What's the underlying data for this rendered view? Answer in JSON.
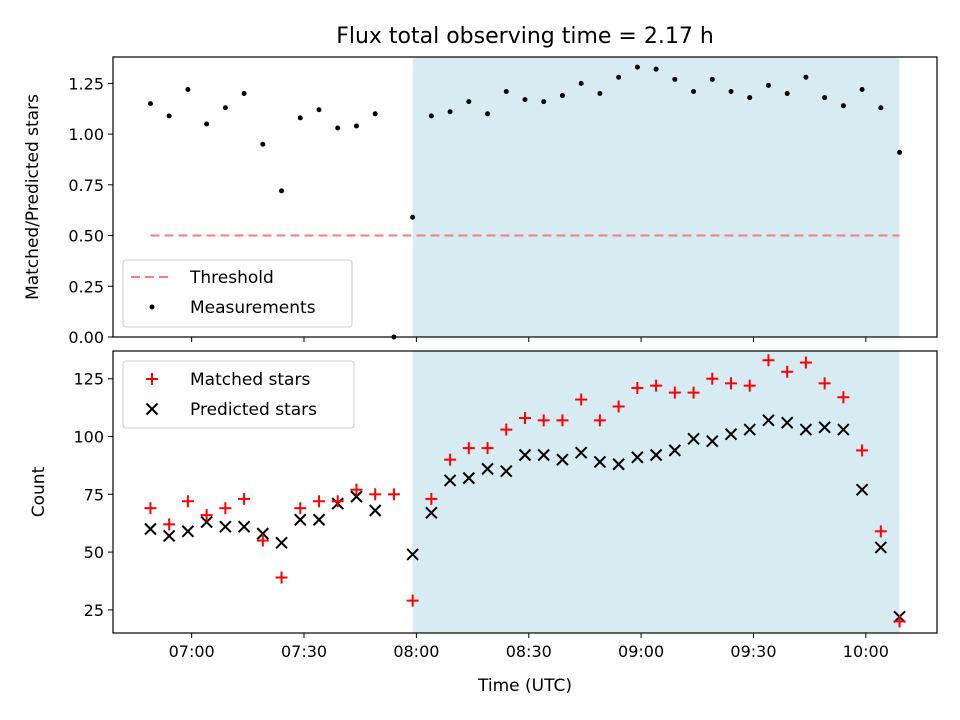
{
  "title": "Flux total observing time = 2.17 h",
  "xlabel": "Time (UTC)",
  "colors": {
    "threshold": "#f08080",
    "measurement": "#000000",
    "matched": "#ff0000",
    "predicted": "#000000",
    "shade": "#add8e6"
  },
  "chart_data": [
    {
      "type": "scatter",
      "ylabel": "Matched/Predicted stars",
      "ylim": [
        0,
        1.38
      ],
      "yticks": [
        "0.00",
        "0.25",
        "0.50",
        "0.75",
        "1.00",
        "1.25"
      ],
      "xlim": [
        "06:39",
        "10:19"
      ],
      "xticks": [
        "07:00",
        "07:30",
        "08:00",
        "08:30",
        "09:00",
        "09:30",
        "10:00"
      ],
      "shaded_span": [
        "07:59",
        "10:09"
      ],
      "threshold": {
        "name": "Threshold",
        "value": 0.5,
        "x": [
          "06:49",
          "10:09"
        ]
      },
      "legend": [
        "Threshold",
        "Measurements"
      ],
      "legend_loc": "lower left",
      "series": [
        {
          "name": "Measurements",
          "x": [
            "06:49",
            "06:54",
            "06:59",
            "07:04",
            "07:09",
            "07:14",
            "07:19",
            "07:24",
            "07:29",
            "07:34",
            "07:39",
            "07:44",
            "07:49",
            "07:54",
            "07:59",
            "08:04",
            "08:09",
            "08:14",
            "08:19",
            "08:24",
            "08:29",
            "08:34",
            "08:39",
            "08:44",
            "08:49",
            "08:54",
            "08:59",
            "09:04",
            "09:09",
            "09:14",
            "09:19",
            "09:24",
            "09:29",
            "09:34",
            "09:39",
            "09:44",
            "09:49",
            "09:54",
            "09:59",
            "10:04",
            "10:09"
          ],
          "y": [
            1.15,
            1.09,
            1.22,
            1.05,
            1.13,
            1.2,
            0.95,
            0.72,
            1.08,
            1.12,
            1.03,
            1.04,
            1.1,
            0.0,
            0.59,
            1.09,
            1.11,
            1.16,
            1.1,
            1.21,
            1.17,
            1.16,
            1.19,
            1.25,
            1.2,
            1.28,
            1.33,
            1.32,
            1.27,
            1.21,
            1.27,
            1.21,
            1.18,
            1.24,
            1.2,
            1.28,
            1.18,
            1.14,
            1.22,
            1.13,
            0.91
          ]
        }
      ]
    },
    {
      "type": "scatter",
      "ylabel": "Count",
      "ylim": [
        15,
        137
      ],
      "yticks": [
        "25",
        "50",
        "75",
        "100",
        "125"
      ],
      "xlim": [
        "06:39",
        "10:19"
      ],
      "xticks": [
        "07:00",
        "07:30",
        "08:00",
        "08:30",
        "09:00",
        "09:30",
        "10:00"
      ],
      "shaded_span": [
        "07:59",
        "10:09"
      ],
      "legend": [
        "Matched stars",
        "Predicted stars"
      ],
      "legend_loc": "upper left",
      "series": [
        {
          "name": "Matched stars",
          "marker": "+",
          "x": [
            "06:49",
            "06:54",
            "06:59",
            "07:04",
            "07:09",
            "07:14",
            "07:19",
            "07:24",
            "07:29",
            "07:34",
            "07:39",
            "07:44",
            "07:49",
            "07:54",
            "07:59",
            "08:04",
            "08:09",
            "08:14",
            "08:19",
            "08:24",
            "08:29",
            "08:34",
            "08:39",
            "08:44",
            "08:49",
            "08:54",
            "08:59",
            "09:04",
            "09:09",
            "09:14",
            "09:19",
            "09:24",
            "09:29",
            "09:34",
            "09:39",
            "09:44",
            "09:49",
            "09:54",
            "09:59",
            "10:04",
            "10:09"
          ],
          "y": [
            69,
            62,
            72,
            66,
            69,
            73,
            55,
            39,
            69,
            72,
            72,
            77,
            75,
            75,
            29,
            73,
            90,
            95,
            95,
            103,
            108,
            107,
            107,
            116,
            107,
            113,
            121,
            122,
            119,
            119,
            125,
            123,
            122,
            133,
            128,
            132,
            123,
            117,
            94,
            59,
            20
          ]
        },
        {
          "name": "Predicted stars",
          "marker": "x",
          "x": [
            "06:49",
            "06:54",
            "06:59",
            "07:04",
            "07:09",
            "07:14",
            "07:19",
            "07:24",
            "07:29",
            "07:34",
            "07:39",
            "07:44",
            "07:49",
            "07:59",
            "08:04",
            "08:09",
            "08:14",
            "08:19",
            "08:24",
            "08:29",
            "08:34",
            "08:39",
            "08:44",
            "08:49",
            "08:54",
            "08:59",
            "09:04",
            "09:09",
            "09:14",
            "09:19",
            "09:24",
            "09:29",
            "09:34",
            "09:39",
            "09:44",
            "09:49",
            "09:54",
            "09:59",
            "10:04",
            "10:09"
          ],
          "y": [
            60,
            57,
            59,
            63,
            61,
            61,
            58,
            54,
            64,
            64,
            71,
            74,
            68,
            49,
            67,
            81,
            82,
            86,
            85,
            92,
            92,
            90,
            93,
            89,
            88,
            91,
            92,
            94,
            99,
            98,
            101,
            103,
            107,
            106,
            103,
            104,
            103,
            77,
            52,
            22
          ]
        }
      ]
    }
  ]
}
